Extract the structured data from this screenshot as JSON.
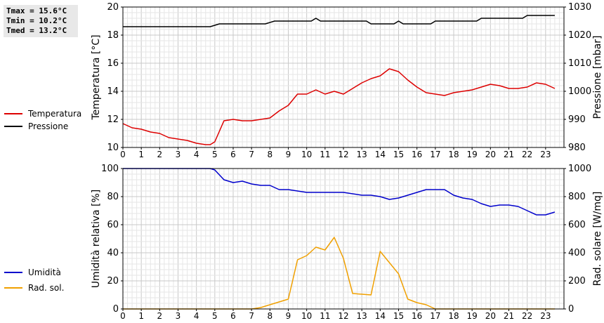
{
  "stats": {
    "tmax": "Tmax = 15.6°C",
    "tmin": "Tmin = 10.2°C",
    "tmed": "Tmed = 13.2°C"
  },
  "legend_top": [
    {
      "label": "Temperatura",
      "color": "#dd0000"
    },
    {
      "label": "Pressione",
      "color": "#000000"
    }
  ],
  "legend_bottom": [
    {
      "label": "Umidità",
      "color": "#0000cc"
    },
    {
      "label": "Rad. sol.",
      "color": "#f0a000"
    }
  ],
  "chart_data": [
    {
      "type": "line",
      "xlabel": "",
      "xlim": [
        0,
        24
      ],
      "x_ticks": [
        0,
        1,
        2,
        3,
        4,
        5,
        6,
        7,
        8,
        9,
        10,
        11,
        12,
        13,
        14,
        15,
        16,
        17,
        18,
        19,
        20,
        21,
        22,
        23
      ],
      "ylabel": "Temperatura [°C]",
      "ylim": [
        10,
        20
      ],
      "y_ticks": [
        10,
        12,
        14,
        16,
        18,
        20
      ],
      "y2label": "Pressione [mbar]",
      "y2lim": [
        980,
        1030
      ],
      "y2_ticks": [
        980,
        990,
        1000,
        1010,
        1020,
        1030
      ],
      "grid": true,
      "series": [
        {
          "name": "Temperatura",
          "axis": "left",
          "color": "#dd0000",
          "x": [
            0,
            0.5,
            1,
            1.5,
            2,
            2.5,
            3,
            3.5,
            4,
            4.5,
            4.75,
            5,
            5.5,
            6,
            6.5,
            7,
            7.5,
            8,
            8.5,
            9,
            9.5,
            10,
            10.5,
            11,
            11.5,
            12,
            12.5,
            13,
            13.5,
            14,
            14.5,
            15,
            15.5,
            16,
            16.5,
            17,
            17.5,
            18,
            18.5,
            19,
            19.5,
            20,
            20.5,
            21,
            21.5,
            22,
            22.5,
            23,
            23.5
          ],
          "values": [
            11.7,
            11.4,
            11.3,
            11.1,
            11.0,
            10.7,
            10.6,
            10.5,
            10.3,
            10.2,
            10.2,
            10.4,
            11.9,
            12.0,
            11.9,
            11.9,
            12.0,
            12.1,
            12.6,
            13.0,
            13.8,
            13.8,
            14.1,
            13.8,
            14.0,
            13.8,
            14.2,
            14.6,
            14.9,
            15.1,
            15.6,
            15.4,
            14.8,
            14.3,
            13.9,
            13.8,
            13.7,
            13.9,
            14.0,
            14.1,
            14.3,
            14.5,
            14.4,
            14.2,
            14.2,
            14.3,
            14.6,
            14.5,
            14.2
          ]
        },
        {
          "name": "Pressione",
          "axis": "right",
          "color": "#000000",
          "x": [
            0,
            4.75,
            5.25,
            7.75,
            8.25,
            10.25,
            10.5,
            10.75,
            13.25,
            13.5,
            14.75,
            15,
            15.25,
            16.75,
            17,
            19.25,
            19.5,
            21.75,
            22,
            23.5
          ],
          "values": [
            1023,
            1023,
            1024,
            1024,
            1025,
            1025,
            1026,
            1025,
            1025,
            1024,
            1024,
            1025,
            1024,
            1024,
            1025,
            1025,
            1026,
            1026,
            1027,
            1027
          ]
        }
      ]
    },
    {
      "type": "line",
      "xlabel": "",
      "xlim": [
        0,
        24
      ],
      "x_ticks": [
        0,
        1,
        2,
        3,
        4,
        5,
        6,
        7,
        8,
        9,
        10,
        11,
        12,
        13,
        14,
        15,
        16,
        17,
        18,
        19,
        20,
        21,
        22,
        23
      ],
      "ylabel": "Umidità relativa [%]",
      "ylim": [
        0,
        100
      ],
      "y_ticks": [
        0,
        20,
        40,
        60,
        80,
        100
      ],
      "y2label": "Rad. solare [W/mq]",
      "y2lim": [
        0,
        1000
      ],
      "y2_ticks": [
        0,
        200,
        400,
        600,
        800,
        1000
      ],
      "grid": true,
      "series": [
        {
          "name": "Umidità",
          "axis": "left",
          "color": "#0000cc",
          "x": [
            0,
            4.75,
            5,
            5.5,
            6,
            6.5,
            7,
            7.5,
            8,
            8.5,
            9,
            9.5,
            10,
            11,
            12,
            13,
            13.5,
            14,
            14.5,
            15,
            15.5,
            16,
            16.5,
            17,
            17.5,
            18,
            18.5,
            19,
            19.5,
            20,
            20.5,
            21,
            21.5,
            22,
            22.5,
            23,
            23.5
          ],
          "values": [
            100,
            100,
            99,
            92,
            90,
            91,
            89,
            88,
            88,
            85,
            85,
            84,
            83,
            83,
            83,
            81,
            81,
            80,
            78,
            79,
            81,
            83,
            85,
            85,
            85,
            81,
            79,
            78,
            75,
            73,
            74,
            74,
            73,
            70,
            67,
            67,
            69
          ]
        },
        {
          "name": "Rad. sol.",
          "axis": "right",
          "color": "#f0a000",
          "x": [
            0,
            7,
            7.5,
            8,
            8.5,
            9,
            9.5,
            10,
            10.5,
            11,
            11.5,
            12,
            12.5,
            13,
            13.5,
            14,
            14.5,
            15,
            15.5,
            16,
            16.5,
            17,
            23.5
          ],
          "values": [
            0,
            0,
            10,
            30,
            50,
            70,
            350,
            380,
            440,
            420,
            510,
            360,
            110,
            105,
            100,
            410,
            330,
            250,
            70,
            45,
            30,
            0,
            0
          ]
        }
      ]
    }
  ]
}
